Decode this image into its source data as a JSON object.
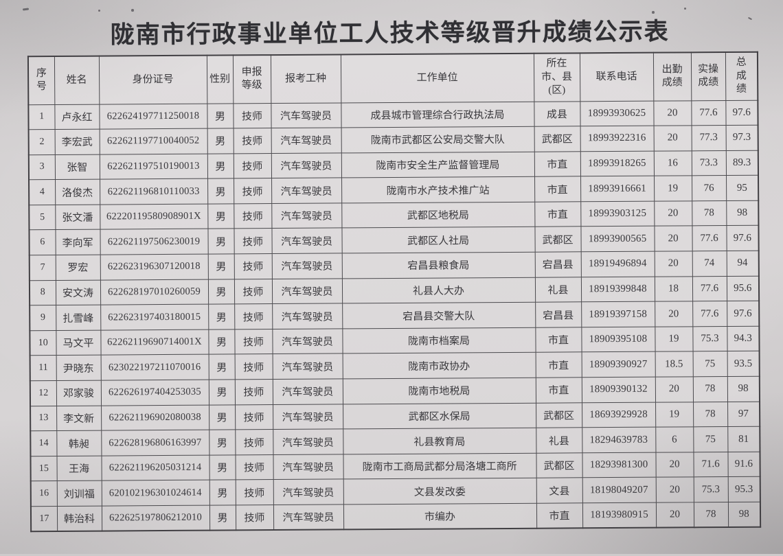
{
  "title": "陇南市行政事业单位工人技术等级晋升成绩公示表",
  "table": {
    "columns": [
      "序\n号",
      "姓名",
      "身份证号",
      "性别",
      "申报\n等级",
      "报考工种",
      "工作单位",
      "所在\n市、县\n(区)",
      "联系电话",
      "出勤\n成绩",
      "实操\n成绩",
      "总\n成\n绩"
    ],
    "rows": [
      [
        "1",
        "卢永红",
        "622624197711250018",
        "男",
        "技师",
        "汽车驾驶员",
        "成县城市管理综合行政执法局",
        "成县",
        "18993930625",
        "20",
        "77.6",
        "97.6"
      ],
      [
        "2",
        "李宏武",
        "622621197710040052",
        "男",
        "技师",
        "汽车驾驶员",
        "陇南市武都区公安局交警大队",
        "武都区",
        "18993922316",
        "20",
        "77.3",
        "97.3"
      ],
      [
        "3",
        "张智",
        "622621197510190013",
        "男",
        "技师",
        "汽车驾驶员",
        "陇南市安全生产监督管理局",
        "市直",
        "18993918265",
        "16",
        "73.3",
        "89.3"
      ],
      [
        "4",
        "洛俊杰",
        "622621196810110033",
        "男",
        "技师",
        "汽车驾驶员",
        "陇南市水产技术推广站",
        "市直",
        "18993916661",
        "19",
        "76",
        "95"
      ],
      [
        "5",
        "张文潘",
        "62220119580908901X",
        "男",
        "技师",
        "汽车驾驶员",
        "武都区地税局",
        "市直",
        "18993903125",
        "20",
        "78",
        "98"
      ],
      [
        "6",
        "李向军",
        "622621197506230019",
        "男",
        "技师",
        "汽车驾驶员",
        "武都区人社局",
        "武都区",
        "18993900565",
        "20",
        "77.6",
        "97.6"
      ],
      [
        "7",
        "罗宏",
        "622623196307120018",
        "男",
        "技师",
        "汽车驾驶员",
        "宕昌县粮食局",
        "宕昌县",
        "18919496894",
        "20",
        "74",
        "94"
      ],
      [
        "8",
        "安文涛",
        "622628197010260059",
        "男",
        "技师",
        "汽车驾驶员",
        "礼县人大办",
        "礼县",
        "18919399848",
        "18",
        "77.6",
        "95.6"
      ],
      [
        "9",
        "扎雪峰",
        "622623197403180015",
        "男",
        "技师",
        "汽车驾驶员",
        "宕昌县交警大队",
        "宕昌县",
        "18919397158",
        "20",
        "77.6",
        "97.6"
      ],
      [
        "10",
        "马文平",
        "62262119690714001X",
        "男",
        "技师",
        "汽车驾驶员",
        "陇南市档案局",
        "市直",
        "18909395108",
        "19",
        "75.3",
        "94.3"
      ],
      [
        "11",
        "尹晓东",
        "623022197211070016",
        "男",
        "技师",
        "汽车驾驶员",
        "陇南市政协办",
        "市直",
        "18909390927",
        "18.5",
        "75",
        "93.5"
      ],
      [
        "12",
        "邓家骏",
        "622626197404253035",
        "男",
        "技师",
        "汽车驾驶员",
        "陇南市地税局",
        "市直",
        "18909390132",
        "20",
        "78",
        "98"
      ],
      [
        "13",
        "李文新",
        "622621196902080038",
        "男",
        "技师",
        "汽车驾驶员",
        "武都区水保局",
        "武都区",
        "18693929928",
        "19",
        "78",
        "97"
      ],
      [
        "14",
        "韩昶",
        "622628196806163997",
        "男",
        "技师",
        "汽车驾驶员",
        "礼县教育局",
        "礼县",
        "18294639783",
        "6",
        "75",
        "81"
      ],
      [
        "15",
        "王海",
        "622621196205031214",
        "男",
        "技师",
        "汽车驾驶员",
        "陇南市工商局武都分局洛塘工商所",
        "武都区",
        "18293981300",
        "20",
        "71.6",
        "91.6"
      ],
      [
        "16",
        "刘训福",
        "620102196301024614",
        "男",
        "技师",
        "汽车驾驶员",
        "文县发改委",
        "文县",
        "18198049207",
        "20",
        "75.3",
        "95.3"
      ],
      [
        "17",
        "韩治科",
        "622625197806212010",
        "男",
        "技师",
        "汽车驾驶员",
        "市编办",
        "市直",
        "18193980915",
        "20",
        "78",
        "98"
      ]
    ]
  }
}
